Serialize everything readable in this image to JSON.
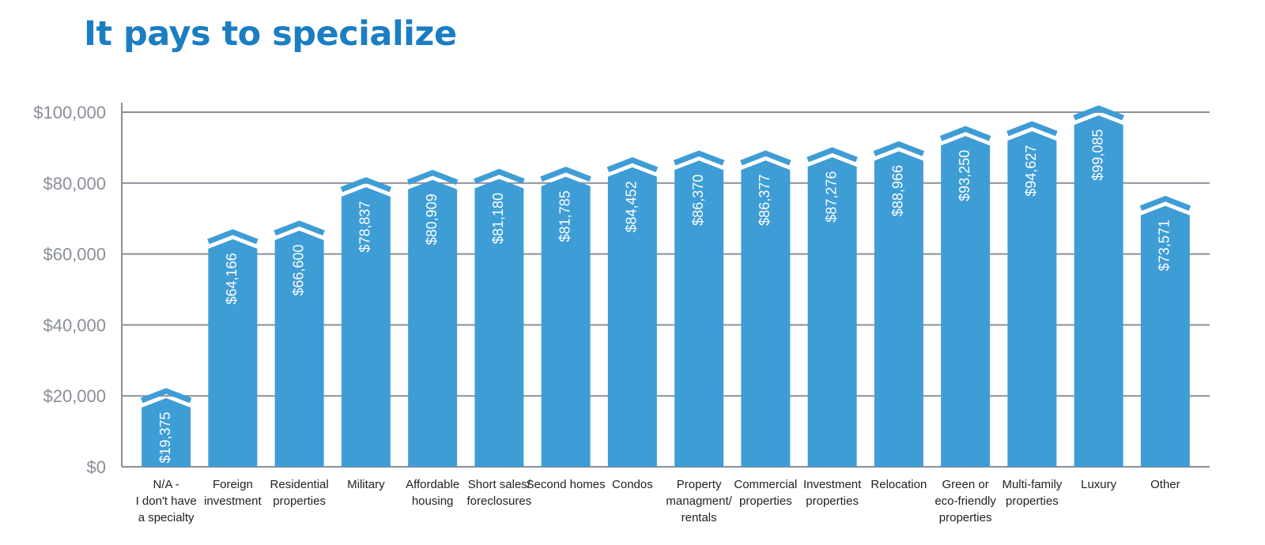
{
  "title": "It pays to specialize",
  "colors": {
    "title": "#1b7ec2",
    "bar": "#3f9dd6",
    "grid": "#8a8f97"
  },
  "chart_data": {
    "type": "bar",
    "title": "It pays to specialize",
    "ylim": [
      0,
      100000
    ],
    "yticks": [
      0,
      20000,
      40000,
      60000,
      80000,
      100000
    ],
    "ytick_labels": [
      "$0",
      "$20,000",
      "$40,000",
      "$60,000",
      "$80,000",
      "$100,000"
    ],
    "grid": true,
    "categories": [
      "N/A - I don't have a specialty",
      "Foreign investment",
      "Residential properties",
      "Military",
      "Affordable housing",
      "Short sales/ foreclosures",
      "Second homes",
      "Condos",
      "Property managment/ rentals",
      "Commercial properties",
      "Investment properties",
      "Relocation",
      "Green or eco-friendly properties",
      "Multi-family properties",
      "Luxury",
      "Other"
    ],
    "category_lines": [
      [
        "N/A -",
        "I don't have",
        "a specialty"
      ],
      [
        "Foreign",
        "investment"
      ],
      [
        "Residential",
        "properties"
      ],
      [
        "Military"
      ],
      [
        "Affordable",
        "housing"
      ],
      [
        "Short sales/",
        "foreclosures"
      ],
      [
        "Second homes"
      ],
      [
        "Condos"
      ],
      [
        "Property",
        "managment/",
        "rentals"
      ],
      [
        "Commercial",
        "properties"
      ],
      [
        "Investment",
        "properties"
      ],
      [
        "Relocation"
      ],
      [
        "Green or",
        "eco-friendly",
        "properties"
      ],
      [
        "Multi-family",
        "properties"
      ],
      [
        "Luxury"
      ],
      [
        "Other"
      ]
    ],
    "values": [
      19375,
      64166,
      66600,
      78837,
      80909,
      81180,
      81785,
      84452,
      86370,
      86377,
      87276,
      88966,
      93250,
      94627,
      99085,
      73571
    ],
    "data_labels": [
      "$19,375",
      "$64,166",
      "$66,600",
      "$78,837",
      "$80,909",
      "$81,180",
      "$81,785",
      "$84,452",
      "$86,370",
      "$86,377",
      "$87,276",
      "$88,966",
      "$93,250",
      "$94,627",
      "$99,085",
      "$73,571"
    ]
  }
}
